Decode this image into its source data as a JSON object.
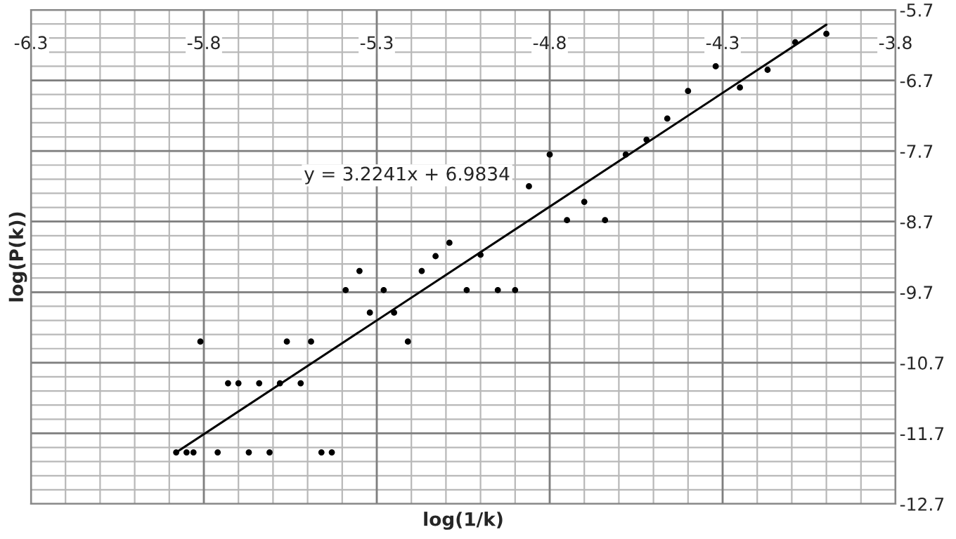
{
  "chart_data": {
    "type": "scatter",
    "xlabel": "log(1/k)",
    "ylabel": "log(P(k))",
    "annotations": [
      "y = 3.2241x + 6.9834"
    ],
    "xlim": [
      -6.3,
      -3.8
    ],
    "xticks": [
      -6.3,
      -5.8,
      -5.3,
      -4.8,
      -4.3,
      -3.8
    ],
    "ylim": [
      -12.7,
      -5.7
    ],
    "yticks": [
      -5.7,
      -6.7,
      -7.7,
      -8.7,
      -9.7,
      -10.7,
      -11.7,
      -12.7
    ],
    "grid": true,
    "legend": false,
    "marker": "circle",
    "series": [
      {
        "color": "#000000",
        "x": [
          -5.88,
          -5.85,
          -5.83,
          -5.76,
          -5.67,
          -5.61,
          -5.46,
          -5.43,
          -5.73,
          -5.7,
          -5.64,
          -5.58,
          -5.52,
          -5.81,
          -5.56,
          -5.49,
          -5.21,
          -5.32,
          -5.25,
          -5.39,
          -5.28,
          -5.35,
          -5.17,
          -5.04,
          -4.95,
          -4.9,
          -5.13,
          -5.09,
          -5.0,
          -4.86,
          -4.8,
          -4.75,
          -4.7,
          -4.64,
          -4.58,
          -4.52,
          -4.46,
          -4.4,
          -4.32,
          -4.25,
          -4.17,
          -4.09,
          -4.0
        ],
        "values": [
          -11.97,
          -11.97,
          -11.97,
          -11.97,
          -11.97,
          -11.97,
          -11.97,
          -11.97,
          -10.99,
          -10.99,
          -10.99,
          -10.99,
          -10.99,
          -10.4,
          -10.4,
          -10.4,
          -10.4,
          -9.99,
          -9.99,
          -9.67,
          -9.67,
          -9.4,
          -9.4,
          -9.67,
          -9.67,
          -9.67,
          -9.19,
          -9.0,
          -9.17,
          -8.2,
          -7.75,
          -8.68,
          -8.42,
          -8.68,
          -7.75,
          -7.54,
          -7.24,
          -6.85,
          -6.5,
          -6.8,
          -6.55,
          -6.16,
          -6.04
        ]
      },
      {
        "type": "line",
        "color": "#000000",
        "marker": "none",
        "line_style": "solid",
        "x": [
          -5.88,
          -4.0
        ],
        "values": [
          -11.97,
          -5.91
        ]
      }
    ]
  }
}
